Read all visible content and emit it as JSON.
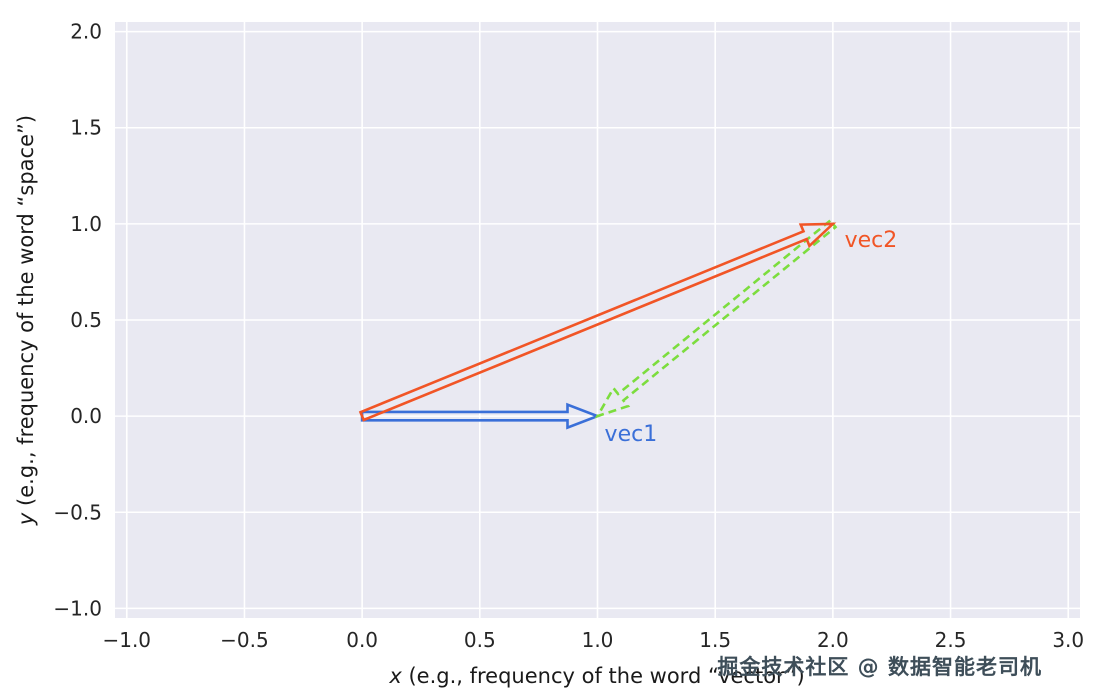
{
  "figure": {
    "watermark": "掘金技术社区 @ 数据智能老司机"
  },
  "chart_data": {
    "type": "quiver",
    "title": "",
    "xlabel": "x (e.g., frequency of the word “vector”)",
    "xlabel_var": "x",
    "xlabel_rest": " (e.g., frequency of the word “vector”)",
    "ylabel": "y (e.g., frequency of the word “space”)",
    "ylabel_var": "y",
    "ylabel_rest": " (e.g., frequency of the word “space”)",
    "xlim": [
      -1.05,
      3.05
    ],
    "ylim": [
      -1.05,
      2.05
    ],
    "xticks": [
      -1.0,
      -0.5,
      0.0,
      0.5,
      1.0,
      1.5,
      2.0,
      2.5,
      3.0
    ],
    "yticks": [
      -1.0,
      -0.5,
      0.0,
      0.5,
      1.0,
      1.5,
      2.0
    ],
    "grid": true,
    "legend": false,
    "background": "#e9e9f2",
    "grid_color": "#ffffff",
    "tick_color": "#262626",
    "vectors": [
      {
        "name": "vec1",
        "from": [
          0,
          0
        ],
        "to": [
          1,
          0
        ],
        "color": "#3a6fd8",
        "style": "solid"
      },
      {
        "name": "difference",
        "from": [
          2,
          1
        ],
        "to": [
          1,
          0
        ],
        "color": "#7cdd3e",
        "style": "dashed"
      },
      {
        "name": "vec2",
        "from": [
          0,
          0
        ],
        "to": [
          2,
          1
        ],
        "color": "#f15526",
        "style": "solid"
      }
    ],
    "vector_labels": [
      {
        "text": "vec1",
        "color": "#3a6fd8",
        "x": 1.03,
        "y": -0.13
      },
      {
        "text": "vec2",
        "color": "#f15526",
        "x": 2.05,
        "y": 0.88
      }
    ]
  }
}
